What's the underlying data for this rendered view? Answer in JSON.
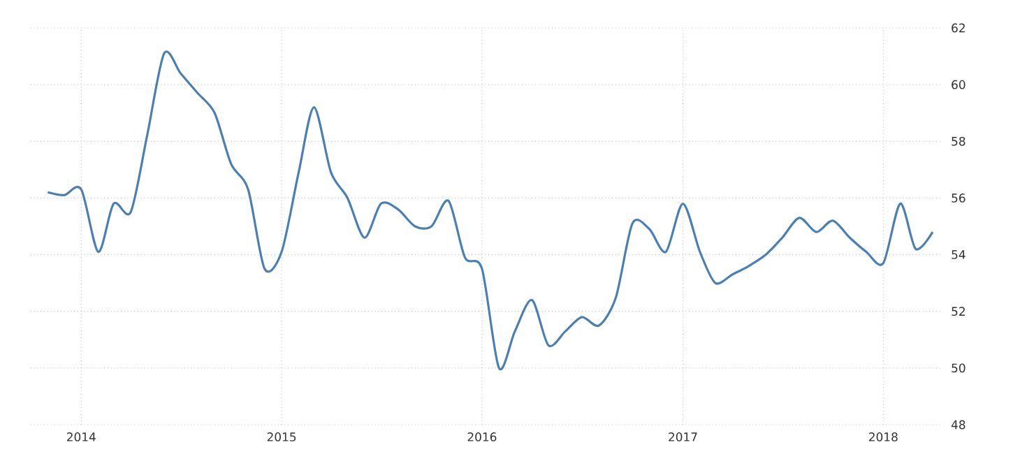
{
  "chart_data": {
    "type": "line",
    "x": [
      "2013-11",
      "2013-12",
      "2014-01",
      "2014-02",
      "2014-03",
      "2014-04",
      "2014-05",
      "2014-06",
      "2014-07",
      "2014-08",
      "2014-09",
      "2014-10",
      "2014-11",
      "2014-12",
      "2015-01",
      "2015-02",
      "2015-03",
      "2015-04",
      "2015-05",
      "2015-06",
      "2015-07",
      "2015-08",
      "2015-09",
      "2015-10",
      "2015-11",
      "2015-12",
      "2016-01",
      "2016-02",
      "2016-03",
      "2016-04",
      "2016-05",
      "2016-06",
      "2016-07",
      "2016-08",
      "2016-09",
      "2016-10",
      "2016-11",
      "2016-12",
      "2017-01",
      "2017-02",
      "2017-03",
      "2017-04",
      "2017-05",
      "2017-06",
      "2017-07",
      "2017-08",
      "2017-09",
      "2017-10",
      "2017-11",
      "2017-12",
      "2018-01",
      "2018-02",
      "2018-03",
      "2018-04"
    ],
    "series": [
      {
        "color": "#4a7fb5",
        "values": [
          56.2,
          56.1,
          56.3,
          54.1,
          55.8,
          55.5,
          58.2,
          61.1,
          60.4,
          59.7,
          59.0,
          57.2,
          56.3,
          53.5,
          54.1,
          56.9,
          59.2,
          56.9,
          56.0,
          54.6,
          55.8,
          55.6,
          55.0,
          55.0,
          55.9,
          53.9,
          53.5,
          50.0,
          51.3,
          52.4,
          50.8,
          51.3,
          51.8,
          51.5,
          52.5,
          55.1,
          54.9,
          54.1,
          55.8,
          54.1,
          53.0,
          53.3,
          53.6,
          54.0,
          54.6,
          55.3,
          54.8,
          55.2,
          54.6,
          54.1,
          53.7,
          55.8,
          54.2,
          54.8
        ]
      }
    ],
    "xlim": [
      "2013-10",
      "2018-04-15"
    ],
    "xticks": [
      "2014",
      "2015",
      "2016",
      "2017",
      "2018"
    ],
    "ylim": [
      48,
      62
    ],
    "yticks": [
      48,
      50,
      52,
      54,
      56,
      58,
      60,
      62
    ],
    "grid": true,
    "marker": "none",
    "line_style": "solid"
  }
}
